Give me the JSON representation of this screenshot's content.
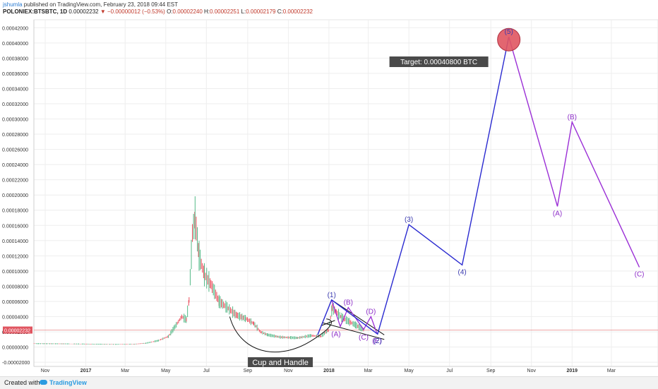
{
  "header": {
    "author": "jshumla",
    "published_text": " published on TradingView.com, February 23, 2018 09:44 EST",
    "symbol": "POLONIEX:BTSBTC, 1D",
    "last": "0.00002232",
    "change": "▼ −0.00000012 (−0.53%)",
    "open_label": "O:",
    "open": "0.00002240",
    "high_label": "H:",
    "high": "0.00002251",
    "low_label": "L:",
    "low": "0.00002179",
    "close_label": "C:",
    "close": "0.00002232"
  },
  "footer": {
    "created_with": "Created with",
    "brand": "TradingView"
  },
  "colors": {
    "candle_up": "#53b987",
    "candle_down": "#eb4d5c",
    "impulse": "#2a2ad0",
    "correction": "#9b2fd6",
    "wave_label": "#3a3ab0",
    "corr_label": "#8e2fc9",
    "price_line": "#e88a8a",
    "target_fill": "#e05560"
  },
  "chart_data": {
    "type": "line",
    "title": "POLONIEX:BTSBTC, 1D",
    "y_axis": {
      "range": [
        -2.55e-05,
        0.0004305
      ],
      "ticks": [
        "0.00042000",
        "0.00040000",
        "0.00038000",
        "0.00036000",
        "0.00034000",
        "0.00032000",
        "0.00030000",
        "0.00028000",
        "0.00026000",
        "0.00024000",
        "0.00022000",
        "0.00020000",
        "0.00018000",
        "0.00016000",
        "0.00014000",
        "0.00012000",
        "0.00010000",
        "0.00008000",
        "0.00006000",
        "0.00004000",
        "0.00002000",
        "0.00000000",
        "-0.00002000"
      ],
      "tick_values": [
        0.00042,
        0.0004,
        0.00038,
        0.00036,
        0.00034,
        0.00032,
        0.0003,
        0.00028,
        0.00026,
        0.00024,
        0.00022,
        0.0002,
        0.00018,
        0.00016,
        0.00014,
        0.00012,
        0.0001,
        8e-05,
        6e-05,
        4e-05,
        2e-05,
        0,
        -2e-05
      ],
      "current_price_label": "0.00002232",
      "current_price": 2.232e-05
    },
    "x_axis": {
      "range": [
        "2016-10-15",
        "2019-05-10"
      ],
      "ticks": [
        {
          "label": "Nov",
          "date": "2016-11-01"
        },
        {
          "label": "2017",
          "date": "2017-01-01"
        },
        {
          "label": "Mar",
          "date": "2017-03-01"
        },
        {
          "label": "May",
          "date": "2017-05-01"
        },
        {
          "label": "Jul",
          "date": "2017-07-01"
        },
        {
          "label": "Sep",
          "date": "2017-09-01"
        },
        {
          "label": "Nov",
          "date": "2017-11-01"
        },
        {
          "label": "2018",
          "date": "2018-01-01"
        },
        {
          "label": "Mar",
          "date": "2018-03-01"
        },
        {
          "label": "May",
          "date": "2018-05-01"
        },
        {
          "label": "Jul",
          "date": "2018-07-01"
        },
        {
          "label": "Sep",
          "date": "2018-09-01"
        },
        {
          "label": "Nov",
          "date": "2018-11-01"
        },
        {
          "label": "2019",
          "date": "2019-01-01"
        },
        {
          "label": "Mar",
          "date": "2019-03-01"
        }
      ]
    },
    "price_history": [
      [
        "2016-10-15",
        4.5e-06
      ],
      [
        "2016-12-01",
        4.2e-06
      ],
      [
        "2017-01-15",
        3.8e-06
      ],
      [
        "2017-02-15",
        3.5e-06
      ],
      [
        "2017-03-15",
        3.8e-06
      ],
      [
        "2017-04-01",
        5e-06
      ],
      [
        "2017-04-20",
        8.5e-06
      ],
      [
        "2017-05-05",
        1.4e-05
      ],
      [
        "2017-05-15",
        2.7e-05
      ],
      [
        "2017-05-25",
        4e-05
      ],
      [
        "2017-06-01",
        3.6e-05
      ],
      [
        "2017-06-05",
        6.2e-05
      ],
      [
        "2017-06-10",
        0.00015
      ],
      [
        "2017-06-14",
        0.00017
      ],
      [
        "2017-06-20",
        0.00012
      ],
      [
        "2017-06-28",
        9.5e-05
      ],
      [
        "2017-07-08",
        8.2e-05
      ],
      [
        "2017-07-20",
        6e-05
      ],
      [
        "2017-08-01",
        5.2e-05
      ],
      [
        "2017-08-15",
        4.2e-05
      ],
      [
        "2017-08-30",
        3.7e-05
      ],
      [
        "2017-09-10",
        3.1e-05
      ],
      [
        "2017-09-20",
        2e-05
      ],
      [
        "2017-10-01",
        1.6e-05
      ],
      [
        "2017-10-20",
        1.3e-05
      ],
      [
        "2017-11-15",
        1.2e-05
      ],
      [
        "2017-12-05",
        1.5e-05
      ],
      [
        "2017-12-20",
        1.4e-05
      ],
      [
        "2017-12-31",
        2.2e-05
      ],
      [
        "2018-01-06",
        5.2e-05
      ],
      [
        "2018-01-12",
        4.6e-05
      ],
      [
        "2018-01-20",
        3.9e-05
      ],
      [
        "2018-02-01",
        3.3e-05
      ],
      [
        "2018-02-10",
        2.9e-05
      ],
      [
        "2018-02-23",
        2.23e-05
      ]
    ],
    "elliott_impulse": {
      "name": "impulse",
      "points": [
        {
          "label": "",
          "date": "2017-12-15",
          "value": 1.6e-05
        },
        {
          "label": "(1)",
          "date": "2018-01-05",
          "value": 6.2e-05
        },
        {
          "label": "(2)",
          "date": "2018-03-15",
          "value": 1.7e-05
        },
        {
          "label": "(3)",
          "date": "2018-05-01",
          "value": 0.000161
        },
        {
          "label": "(4)",
          "date": "2018-07-20",
          "value": 0.000108
        },
        {
          "label": "(5)",
          "date": "2018-09-28",
          "value": 0.000408
        }
      ]
    },
    "elliott_correction": {
      "name": "correction",
      "points": [
        {
          "label": "",
          "date": "2018-09-28",
          "value": 0.000408
        },
        {
          "label": "(A)",
          "date": "2018-12-10",
          "value": 0.000185
        },
        {
          "label": "(B)",
          "date": "2019-01-01",
          "value": 0.000296
        },
        {
          "label": "(C)",
          "date": "2019-04-12",
          "value": 0.000105
        }
      ]
    },
    "triangle_abcde": {
      "points": [
        {
          "label": "(1)",
          "date": "2018-01-05",
          "value": 6.2e-05
        },
        {
          "label": "(A)",
          "date": "2018-01-18",
          "value": 2.7e-05
        },
        {
          "label": "(B)",
          "date": "2018-01-30",
          "value": 5.2e-05
        },
        {
          "label": "(C)",
          "date": "2018-02-22",
          "value": 2.3e-05
        },
        {
          "label": "(D)",
          "date": "2018-03-05",
          "value": 4e-05
        },
        {
          "label": "(E)",
          "date": "2018-03-14",
          "value": 1.8e-05
        }
      ],
      "upper_line": [
        [
          "2018-01-05",
          6.2e-05
        ],
        [
          "2018-03-25",
          1.6e-05
        ]
      ],
      "lower_line": [
        [
          "2017-12-22",
          3.2e-05
        ],
        [
          "2018-03-25",
          1e-05
        ]
      ]
    },
    "cup_and_handle": {
      "label": "Cup and Handle",
      "cup": [
        [
          "2017-08-05",
          4e-05
        ],
        [
          "2017-08-20",
          2e-06
        ],
        [
          "2017-10-15",
          -3e-06
        ],
        [
          "2017-12-05",
          8e-06
        ],
        [
          "2017-12-28",
          3.7e-05
        ]
      ],
      "handle": [
        [
          "2017-12-20",
          2.8e-05
        ],
        [
          "2018-01-10",
          3.5e-05
        ]
      ]
    },
    "target": {
      "label": "Target: 0.00040800 BTC",
      "value": 0.000408,
      "date": "2018-09-28"
    }
  }
}
